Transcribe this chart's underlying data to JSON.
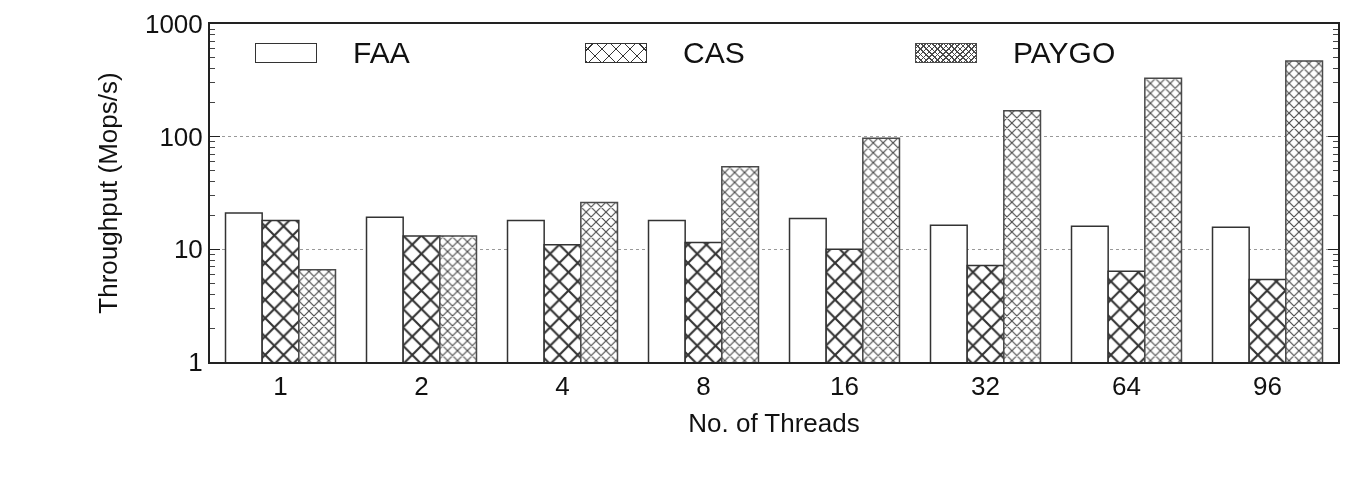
{
  "chart_data": {
    "type": "bar",
    "xlabel": "No. of Threads",
    "ylabel": "Throughput (Mops/s)",
    "categories": [
      "1",
      "2",
      "4",
      "8",
      "16",
      "32",
      "64",
      "96"
    ],
    "series": [
      {
        "name": "FAA",
        "color": "#ffffff",
        "values": [
          21,
          19.3,
          18,
          18,
          18.8,
          16.4,
          16,
          15.7
        ]
      },
      {
        "name": "CAS",
        "color": "#333333",
        "values": [
          18,
          13.1,
          11,
          11.5,
          10,
          7.2,
          6.4,
          5.4
        ]
      },
      {
        "name": "PAYGO",
        "color": "#4a4a4a",
        "values": [
          6.6,
          13.1,
          26,
          54,
          97,
          170,
          330,
          470
        ]
      }
    ],
    "log": true,
    "ylim": [
      1,
      1000
    ],
    "yticks": [
      1,
      10,
      100,
      1000
    ],
    "grid": "y",
    "legend": "top left"
  }
}
